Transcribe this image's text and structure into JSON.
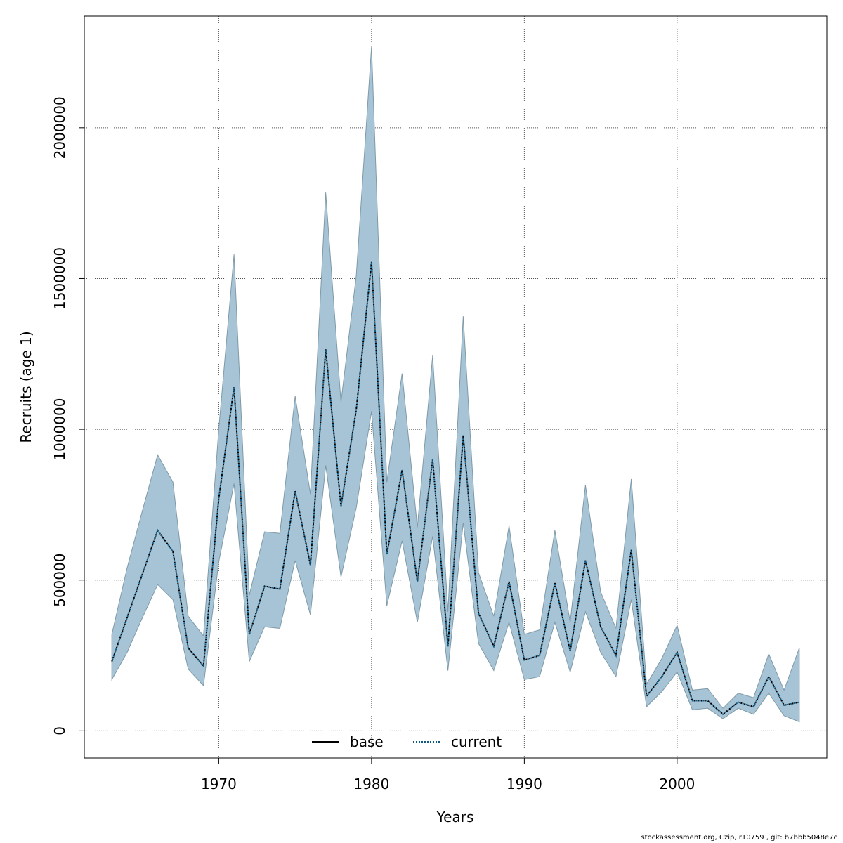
{
  "chart_data": {
    "type": "area",
    "xlabel": "Years",
    "ylabel": "Recruits (age 1)",
    "xlim": [
      1961.2,
      2009.8
    ],
    "ylim": [
      -90000,
      2370000
    ],
    "x_ticks": [
      1970,
      1980,
      1990,
      2000
    ],
    "y_ticks": [
      0,
      500000,
      1000000,
      1500000,
      2000000
    ],
    "grid": true,
    "legend_position": "bottom-center",
    "legend": [
      {
        "label": "base",
        "style": "solid",
        "color": "#000000"
      },
      {
        "label": "current",
        "style": "dotted",
        "color": "#0b5a86"
      }
    ],
    "band_color": "#a6c4d5",
    "x": [
      1963,
      1964,
      1965,
      1966,
      1967,
      1968,
      1969,
      1970,
      1971,
      1972,
      1973,
      1974,
      1975,
      1976,
      1977,
      1978,
      1979,
      1980,
      1981,
      1982,
      1983,
      1984,
      1985,
      1986,
      1987,
      1988,
      1989,
      1990,
      1991,
      1992,
      1993,
      1994,
      1995,
      1996,
      1997,
      1998,
      1999,
      2000,
      2001,
      2002,
      2003,
      2004,
      2005,
      2006,
      2007,
      2008
    ],
    "band_upper": [
      320000,
      540000,
      730000,
      915000,
      825000,
      380000,
      315000,
      1000000,
      1580000,
      450000,
      660000,
      655000,
      1110000,
      785000,
      1785000,
      1090000,
      1510000,
      2270000,
      825000,
      1185000,
      675000,
      1245000,
      395000,
      1375000,
      525000,
      380000,
      680000,
      320000,
      335000,
      665000,
      360000,
      815000,
      460000,
      340000,
      835000,
      155000,
      240000,
      350000,
      135000,
      140000,
      75000,
      125000,
      110000,
      255000,
      135000,
      275000
    ],
    "band_lower": [
      170000,
      260000,
      375000,
      485000,
      435000,
      205000,
      150000,
      560000,
      820000,
      230000,
      345000,
      340000,
      565000,
      385000,
      880000,
      510000,
      740000,
      1060000,
      415000,
      630000,
      360000,
      645000,
      200000,
      690000,
      290000,
      200000,
      360000,
      170000,
      180000,
      360000,
      195000,
      395000,
      260000,
      180000,
      435000,
      80000,
      130000,
      195000,
      70000,
      75000,
      40000,
      75000,
      55000,
      125000,
      50000,
      30000
    ],
    "series": [
      {
        "name": "base",
        "values": [
          230000,
          375000,
          520000,
          665000,
          595000,
          275000,
          215000,
          770000,
          1140000,
          320000,
          480000,
          470000,
          795000,
          550000,
          1265000,
          745000,
          1065000,
          1555000,
          585000,
          865000,
          495000,
          900000,
          280000,
          980000,
          390000,
          280000,
          495000,
          235000,
          250000,
          490000,
          265000,
          565000,
          345000,
          250000,
          600000,
          115000,
          180000,
          260000,
          100000,
          100000,
          55000,
          95000,
          80000,
          180000,
          85000,
          95000
        ]
      },
      {
        "name": "current",
        "values": [
          230000,
          375000,
          520000,
          665000,
          595000,
          275000,
          215000,
          770000,
          1140000,
          320000,
          480000,
          470000,
          795000,
          550000,
          1265000,
          745000,
          1065000,
          1555000,
          585000,
          865000,
          495000,
          900000,
          280000,
          980000,
          390000,
          280000,
          495000,
          235000,
          250000,
          490000,
          265000,
          565000,
          345000,
          250000,
          600000,
          115000,
          180000,
          260000,
          100000,
          100000,
          55000,
          95000,
          80000,
          180000,
          85000,
          95000
        ]
      }
    ]
  },
  "footer": "stockassessment.org, Czip, r10759 , git: b7bbb5048e7c"
}
